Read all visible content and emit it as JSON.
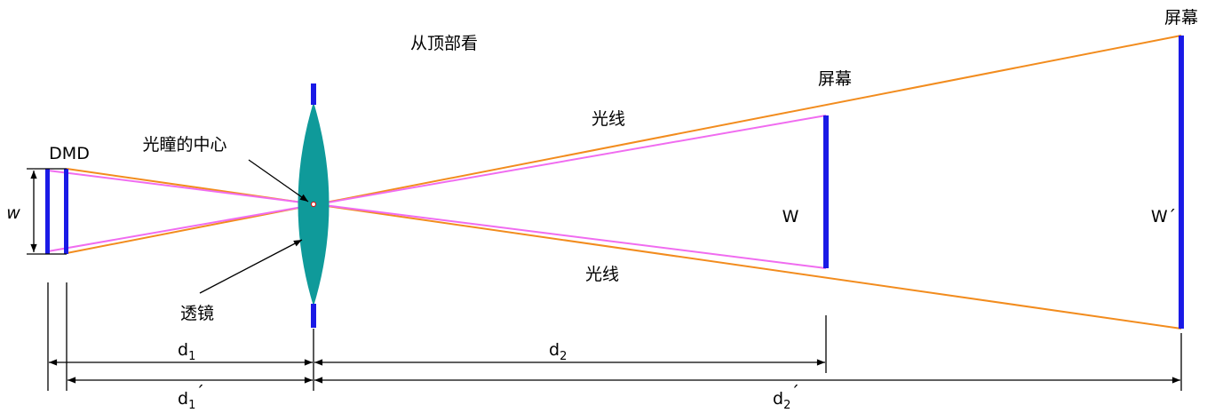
{
  "title": "从顶部看",
  "labels": {
    "screen_near": "屏幕",
    "screen_far": "屏幕",
    "ray_upper": "光线",
    "ray_lower": "光线",
    "dmd": "DMD",
    "pupil_center": "光瞳的中心",
    "lens": "透镜",
    "w": "w",
    "W": "W",
    "W_prime": "W´"
  },
  "dimensions": {
    "d1": {
      "base": "d",
      "sub": "1"
    },
    "d2": {
      "base": "d",
      "sub": "2"
    },
    "d1_prime": {
      "base": "d",
      "sub": "1",
      "prime": "´"
    },
    "d2_prime": {
      "base": "d",
      "sub": "2",
      "prime": "´"
    }
  }
}
